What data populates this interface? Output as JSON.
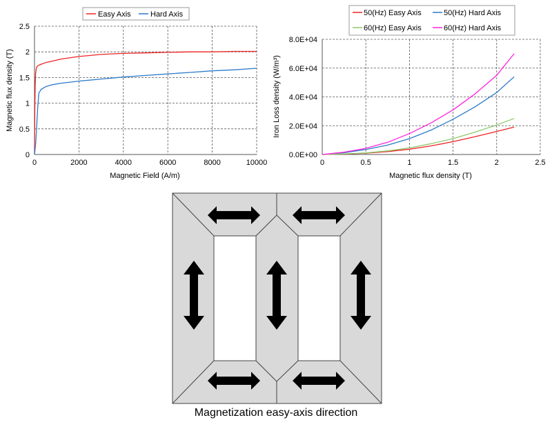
{
  "chart_data": [
    {
      "type": "line",
      "xlabel": "Magnetic Field  (A/m)",
      "ylabel": "Magnetic flux density (T)",
      "xlim": [
        0,
        10000
      ],
      "ylim": [
        0,
        2.5
      ],
      "xticks": [
        "0",
        "2000",
        "4000",
        "6000",
        "8000",
        "10000"
      ],
      "yticks": [
        "0",
        "0.5",
        "1",
        "1.5",
        "2",
        "2.5"
      ],
      "grid": "dashed",
      "legend": "top",
      "series": [
        {
          "name": "Easy Axis",
          "color": "#ee2222",
          "x": [
            0,
            15,
            30,
            50,
            80,
            120,
            200,
            300,
            500,
            800,
            1200,
            2000,
            3000,
            4000,
            5000,
            6000,
            7000,
            8000,
            9000,
            10000
          ],
          "y": [
            0,
            0.9,
            1.35,
            1.58,
            1.68,
            1.72,
            1.74,
            1.76,
            1.79,
            1.82,
            1.86,
            1.91,
            1.95,
            1.97,
            1.98,
            1.99,
            2.0,
            2.0,
            2.01,
            2.01
          ]
        },
        {
          "name": "Hard Axis",
          "color": "#2a7ac8",
          "x": [
            0,
            50,
            100,
            150,
            200,
            300,
            500,
            800,
            1200,
            2000,
            3000,
            4000,
            5000,
            6000,
            7000,
            8000,
            9000,
            10000
          ],
          "y": [
            0,
            0.2,
            0.55,
            0.95,
            1.2,
            1.27,
            1.32,
            1.36,
            1.39,
            1.43,
            1.47,
            1.51,
            1.54,
            1.57,
            1.6,
            1.63,
            1.65,
            1.68
          ]
        }
      ]
    },
    {
      "type": "line",
      "xlabel": "Magnetic flux density (T)",
      "ylabel": "Iron Loss density (W/m³)",
      "xlim": [
        0,
        2.5
      ],
      "ylim": [
        0,
        80000
      ],
      "xticks": [
        "0",
        "0.5",
        "1",
        "1.5",
        "2",
        "2.5"
      ],
      "yticks": [
        "0.0E+00",
        "2.0E+04",
        "4.0E+04",
        "6.0E+04",
        "8.0E+04"
      ],
      "grid": "dashed",
      "legend": "top",
      "series": [
        {
          "name": "50(Hz) Easy Axis",
          "color": "#ee2222",
          "x": [
            0,
            0.25,
            0.5,
            0.75,
            1.0,
            1.25,
            1.5,
            1.75,
            2.0,
            2.2
          ],
          "y": [
            0,
            300,
            900,
            2000,
            3700,
            6000,
            8900,
            12300,
            16000,
            19000
          ]
        },
        {
          "name": "50(Hz) Hard Axis",
          "color": "#2a7ac8",
          "x": [
            0,
            0.25,
            0.5,
            0.75,
            1.0,
            1.25,
            1.5,
            1.75,
            2.0,
            2.2
          ],
          "y": [
            0,
            1200,
            3500,
            6500,
            11000,
            17000,
            24500,
            33000,
            43000,
            54000
          ]
        },
        {
          "name": "60(Hz) Easy Axis",
          "color": "#8dc86b",
          "x": [
            0,
            0.25,
            0.5,
            0.75,
            1.0,
            1.25,
            1.5,
            1.75,
            2.0,
            2.2
          ],
          "y": [
            0,
            400,
            1100,
            2500,
            4600,
            7500,
            11000,
            15500,
            20500,
            25000
          ]
        },
        {
          "name": "60(Hz) Hard Axis",
          "color": "#ff22dd",
          "x": [
            0,
            0.25,
            0.5,
            0.75,
            1.0,
            1.25,
            1.5,
            1.75,
            2.0,
            2.2
          ],
          "y": [
            0,
            1600,
            4300,
            8500,
            14500,
            22000,
            31000,
            42000,
            55000,
            70000
          ]
        }
      ]
    }
  ],
  "diagram": {
    "caption": "Magnetization easy-axis direction",
    "arrows": [
      {
        "name": "top-left-arrow",
        "direction": "horizontal"
      },
      {
        "name": "top-right-arrow",
        "direction": "horizontal"
      },
      {
        "name": "left-leg-arrow",
        "direction": "vertical"
      },
      {
        "name": "center-leg-arrow",
        "direction": "vertical"
      },
      {
        "name": "right-leg-arrow",
        "direction": "vertical"
      },
      {
        "name": "bottom-left-arrow",
        "direction": "horizontal"
      },
      {
        "name": "bottom-right-arrow",
        "direction": "horizontal"
      }
    ]
  }
}
